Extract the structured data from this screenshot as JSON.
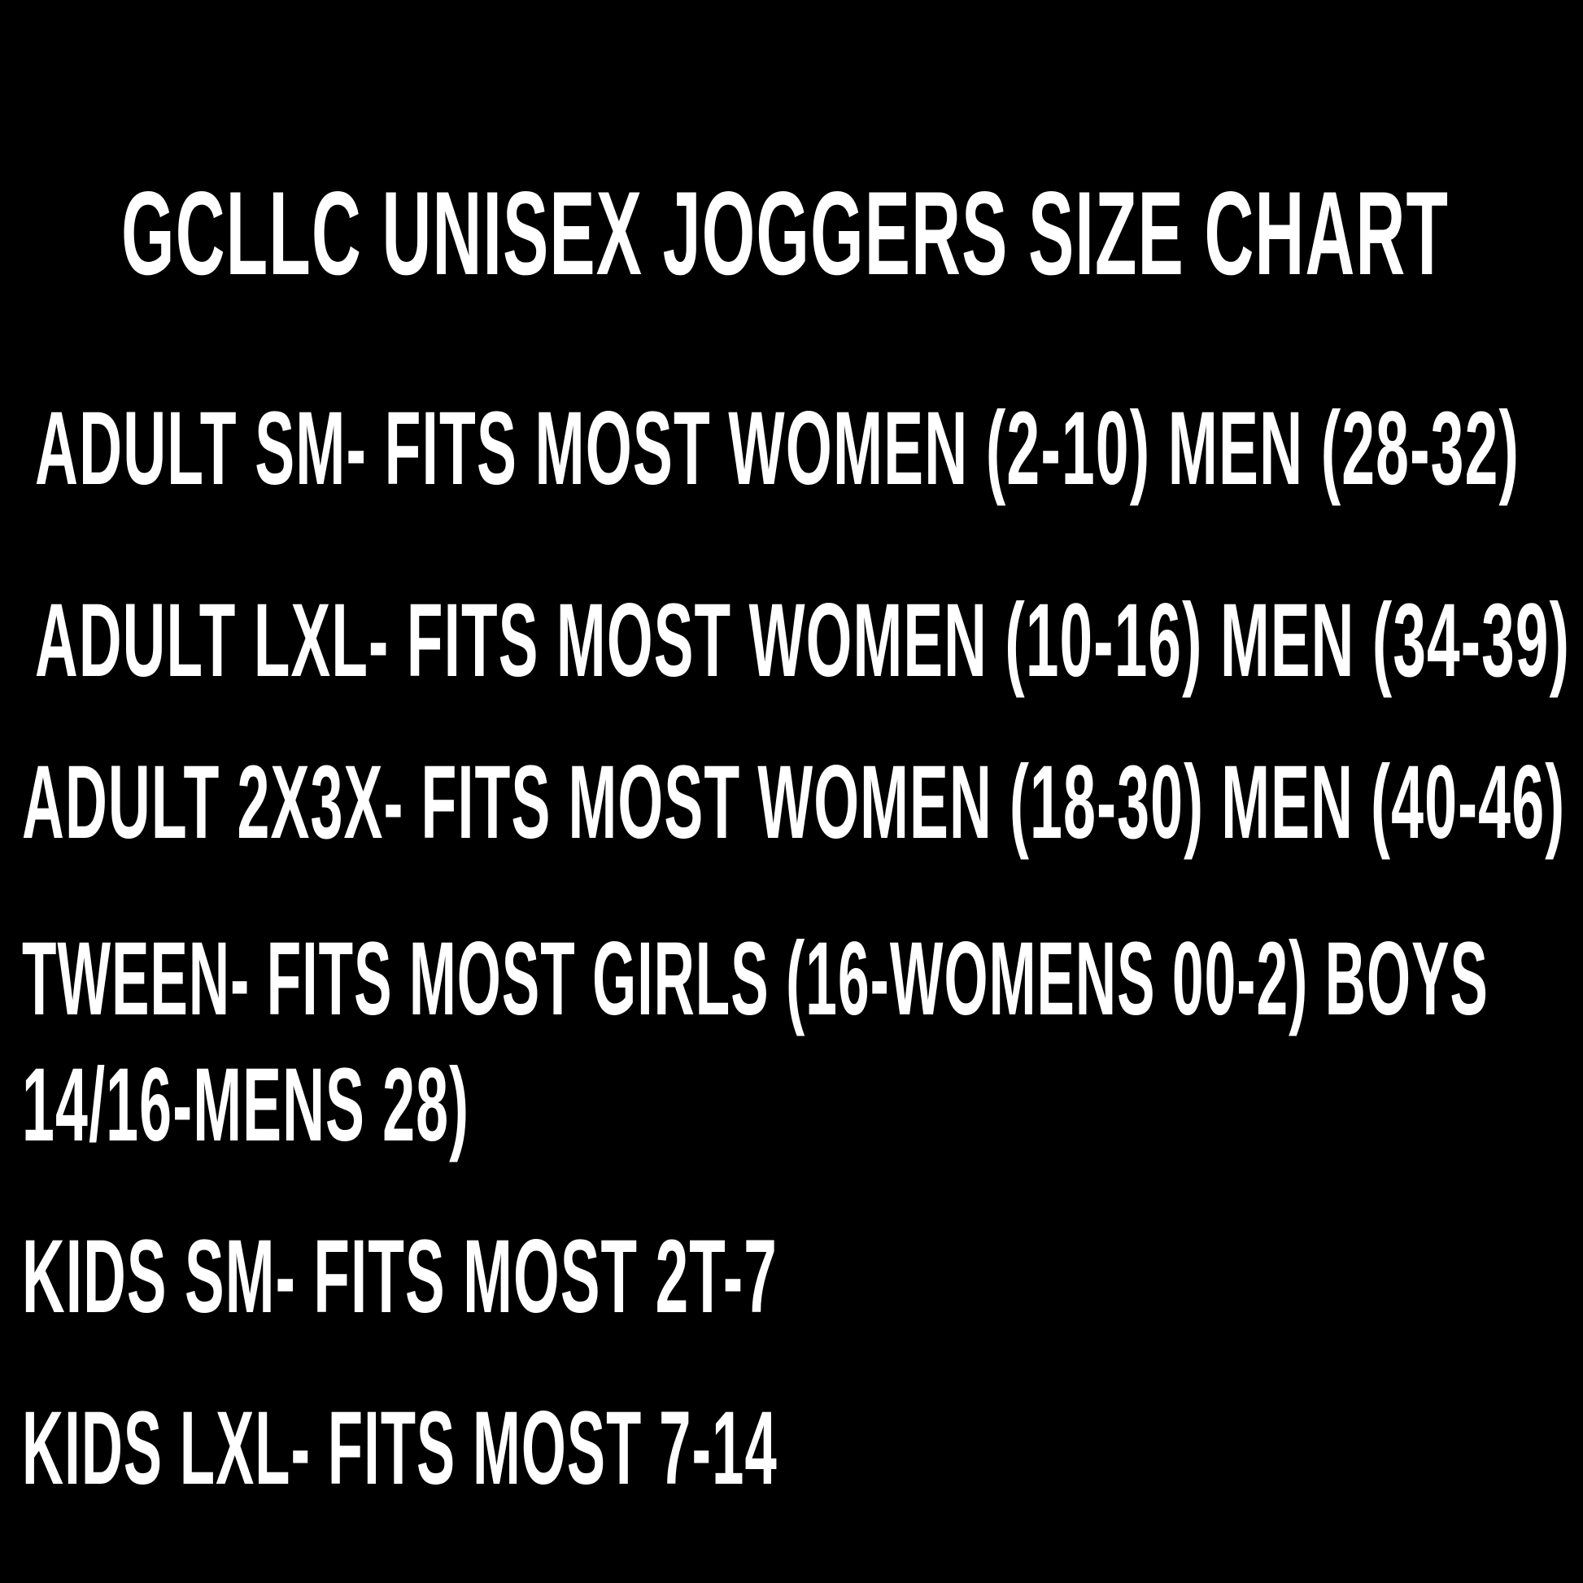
{
  "title": "GCLLC UNISEX JOGGERS SIZE CHART",
  "lines": [
    "ADULT SM- FITS MOST WOMEN (2-10) MEN (28-32)",
    "ADULT LXL- FITS MOST WOMEN (10-16) MEN (34-39)",
    "ADULT 2X3X- FITS MOST WOMEN (18-30) MEN (40-46)",
    "TWEEN- FITS MOST GIRLS (16-WOMENS 00-2) BOYS",
    "14/16-MENS 28)",
    "KIDS SM- FITS MOST 2T-7",
    "KIDS LXL- FITS MOST 7-14"
  ],
  "colors": {
    "background": "#000000",
    "text": "#ffffff"
  }
}
